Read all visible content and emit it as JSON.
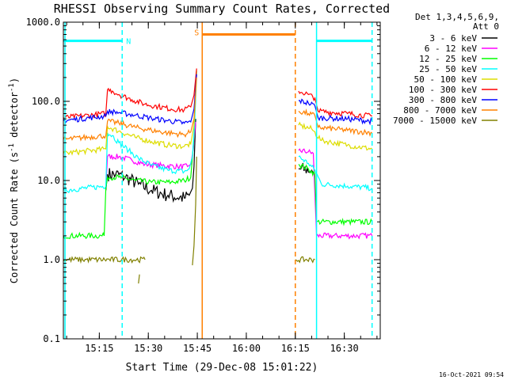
{
  "chart_data": {
    "type": "line",
    "title": "RHESSI Observing Summary Count Rates, Corrected",
    "xlabel": "Start Time (29-Dec-08 15:01:22)",
    "ylabel": "Corrected Count Rate (s⁻¹ detector⁻¹)",
    "ylabel_parts": {
      "main": "Corrected Count Rate (s",
      "sup1": "-1",
      "mid": " detector",
      "sup2": "-1",
      "end": ")"
    },
    "yscale": "log",
    "ylim": [
      0.1,
      1000.0
    ],
    "xlim_minutes": [
      3,
      100
    ],
    "x_tick_labels": [
      {
        "m": 14,
        "label": "15:15"
      },
      {
        "m": 29,
        "label": "15:30"
      },
      {
        "m": 44,
        "label": "15:45"
      },
      {
        "m": 59,
        "label": "16:00"
      },
      {
        "m": 74,
        "label": "16:15"
      },
      {
        "m": 89,
        "label": "16:30"
      }
    ],
    "y_tick_labels": [
      {
        "v": 1000,
        "label": "1000.0"
      },
      {
        "v": 100,
        "label": "100.0"
      },
      {
        "v": 10,
        "label": "10.0"
      },
      {
        "v": 1,
        "label": "1.0"
      },
      {
        "v": 0.1,
        "label": "0.1"
      }
    ],
    "legend": {
      "position": "top-right",
      "header": [
        "Det 1,3,4,5,6,9,",
        "Att 0"
      ],
      "entries": [
        {
          "name": "3 - 6 keV",
          "color": "#000000"
        },
        {
          "name": "6 - 12 keV",
          "color": "#ff00ff"
        },
        {
          "name": "12 - 25 keV",
          "color": "#00ff00"
        },
        {
          "name": "25 - 50 keV",
          "color": "#00ffff"
        },
        {
          "name": "50 - 100 keV",
          "color": "#dddd00"
        },
        {
          "name": "100 - 300 keV",
          "color": "#ff0000"
        },
        {
          "name": "300 - 800 keV",
          "color": "#0000ff"
        },
        {
          "name": "800 - 7000 keV",
          "color": "#ff8000"
        },
        {
          "name": "7000 - 15000 keV",
          "color": "#808000"
        }
      ]
    },
    "annotations": [
      {
        "label": "N",
        "color": "#00ffff",
        "x_start": 3,
        "x_end": 21,
        "y": 580
      },
      {
        "label": "S",
        "color": "#ff8000",
        "x_start": 45.5,
        "x_end": 74,
        "y": 700
      },
      {
        "label": "",
        "color": "#00ffff",
        "x_start": 80.5,
        "x_end": 97.5,
        "y": 580
      }
    ],
    "event_lines": [
      {
        "x": 3.5,
        "color": "#00ffff",
        "style": "solid"
      },
      {
        "x": 21,
        "color": "#00ffff",
        "style": "dashed"
      },
      {
        "x": 45.5,
        "color": "#ff8000",
        "style": "solid"
      },
      {
        "x": 74,
        "color": "#ff8000",
        "style": "dashed"
      },
      {
        "x": 80.5,
        "color": "#00ffff",
        "style": "solid"
      },
      {
        "x": 97.5,
        "color": "#00ffff",
        "style": "dashed"
      }
    ],
    "series": [
      {
        "name": "3 - 6 keV",
        "color": "#000000",
        "segments": [
          [
            [
              16,
              7.5
            ],
            [
              16.5,
              12
            ],
            [
              19,
              12
            ],
            [
              22,
              11
            ],
            [
              26,
              9
            ],
            [
              30,
              7.5
            ],
            [
              35,
              6.5
            ],
            [
              40,
              6
            ],
            [
              41.5,
              6.5
            ],
            [
              42.5,
              8
            ],
            [
              43,
              15
            ],
            [
              43.5,
              60
            ]
          ],
          [
            [
              75,
              14
            ],
            [
              79,
              13.5
            ],
            [
              80,
              11.5
            ]
          ]
        ]
      },
      {
        "name": "6 - 12 keV",
        "color": "#ff00ff",
        "segments": [
          [
            [
              16,
              8
            ],
            [
              16.5,
              20
            ],
            [
              20,
              20
            ],
            [
              24,
              18
            ],
            [
              28,
              16
            ],
            [
              33,
              15.5
            ],
            [
              38,
              15
            ],
            [
              41,
              15
            ],
            [
              42,
              16
            ],
            [
              42.8,
              25
            ],
            [
              43.5,
              55
            ]
          ],
          [
            [
              75,
              24
            ],
            [
              78,
              23
            ],
            [
              79.5,
              22
            ],
            [
              80.5,
              2
            ],
            [
              97.5,
              2
            ]
          ]
        ]
      },
      {
        "name": "12 - 25 keV",
        "color": "#00ff00",
        "segments": [
          [
            [
              3,
              2
            ],
            [
              15.5,
              2
            ],
            [
              16,
              8
            ],
            [
              16.5,
              11
            ],
            [
              20,
              11
            ],
            [
              25,
              10
            ],
            [
              30,
              9.5
            ],
            [
              36,
              9.5
            ],
            [
              40,
              10
            ],
            [
              42,
              11
            ],
            [
              43,
              35
            ],
            [
              43.5,
              170
            ],
            [
              43.8,
              240
            ]
          ],
          [
            [
              75,
              16
            ],
            [
              78,
              14
            ],
            [
              80,
              12
            ],
            [
              80.5,
              3
            ],
            [
              97.5,
              3
            ]
          ]
        ]
      },
      {
        "name": "25 - 50 keV",
        "color": "#00ffff",
        "segments": [
          [
            [
              3,
              7.5
            ],
            [
              16,
              8.5
            ],
            [
              16.5,
              40
            ],
            [
              18,
              37
            ],
            [
              20,
              30
            ],
            [
              23,
              24
            ],
            [
              26,
              19
            ],
            [
              30,
              15.5
            ],
            [
              35,
              13.5
            ],
            [
              40,
              13
            ],
            [
              41.5,
              14
            ],
            [
              42.5,
              20
            ],
            [
              43.2,
              55
            ],
            [
              43.8,
              230
            ]
          ],
          [
            [
              75,
              20
            ],
            [
              78,
              16.5
            ],
            [
              80,
              13.5
            ],
            [
              82,
              9
            ],
            [
              90,
              8.5
            ],
            [
              97.5,
              8
            ]
          ]
        ]
      },
      {
        "name": "50 - 100 keV",
        "color": "#dddd00",
        "segments": [
          [
            [
              3,
              22
            ],
            [
              16,
              25
            ],
            [
              16.5,
              48
            ],
            [
              20,
              42
            ],
            [
              25,
              35
            ],
            [
              30,
              31
            ],
            [
              35,
              28
            ],
            [
              40,
              27
            ],
            [
              42,
              29
            ],
            [
              43,
              50
            ],
            [
              43.8,
              250
            ]
          ],
          [
            [
              75,
              50
            ],
            [
              79,
              45
            ],
            [
              82,
              32
            ],
            [
              90,
              28
            ],
            [
              97.5,
              25
            ]
          ]
        ]
      },
      {
        "name": "100 - 300 keV",
        "color": "#ff0000",
        "segments": [
          [
            [
              3,
              62
            ],
            [
              16,
              70
            ],
            [
              16.5,
              140
            ],
            [
              18,
              135
            ],
            [
              20,
              122
            ],
            [
              24,
              105
            ],
            [
              28,
              92
            ],
            [
              32,
              86
            ],
            [
              36,
              80
            ],
            [
              40,
              78
            ],
            [
              42,
              85
            ],
            [
              43,
              120
            ],
            [
              43.8,
              260
            ]
          ],
          [
            [
              75,
              135
            ],
            [
              78,
              122
            ],
            [
              80,
              110
            ],
            [
              81,
              75
            ],
            [
              90,
              70
            ],
            [
              97.5,
              65
            ]
          ]
        ]
      },
      {
        "name": "300 - 800 keV",
        "color": "#0000ff",
        "segments": [
          [
            [
              3,
              57
            ],
            [
              16,
              65
            ],
            [
              16.5,
              75
            ],
            [
              20,
              72
            ],
            [
              25,
              67
            ],
            [
              30,
              61
            ],
            [
              35,
              57
            ],
            [
              40,
              53
            ],
            [
              42,
              55
            ],
            [
              43,
              80
            ],
            [
              43.8,
              220
            ]
          ],
          [
            [
              75,
              102
            ],
            [
              78,
              95
            ],
            [
              80,
              88
            ],
            [
              81,
              62
            ],
            [
              90,
              60
            ],
            [
              97.5,
              56
            ]
          ]
        ]
      },
      {
        "name": "800 - 7000 keV",
        "color": "#ff8000",
        "segments": [
          [
            [
              3,
              33
            ],
            [
              16,
              37
            ],
            [
              16.5,
              56
            ],
            [
              20,
              53
            ],
            [
              25,
              47
            ],
            [
              30,
              43
            ],
            [
              35,
              40
            ],
            [
              40,
              38
            ],
            [
              42,
              41
            ],
            [
              43,
              60
            ],
            [
              43.8,
              200
            ]
          ],
          [
            [
              75,
              75
            ],
            [
              78,
              70
            ],
            [
              80,
              66
            ],
            [
              81,
              47
            ],
            [
              90,
              43
            ],
            [
              97.5,
              40
            ]
          ]
        ]
      },
      {
        "name": "7000 - 15000 keV",
        "color": "#808000",
        "segments": [
          [
            [
              3,
              1.0
            ],
            [
              28,
              1.0
            ]
          ],
          [
            [
              26,
              0.5
            ],
            [
              26.3,
              0.65
            ]
          ],
          [
            [
              42.5,
              0.85
            ],
            [
              43,
              1.5
            ],
            [
              43.5,
              5
            ],
            [
              43.8,
              20
            ]
          ],
          [
            [
              74,
              1.0
            ],
            [
              80,
              1.0
            ]
          ]
        ]
      }
    ]
  },
  "footer": {
    "timestamp": "16-Oct-2021 09:54"
  }
}
